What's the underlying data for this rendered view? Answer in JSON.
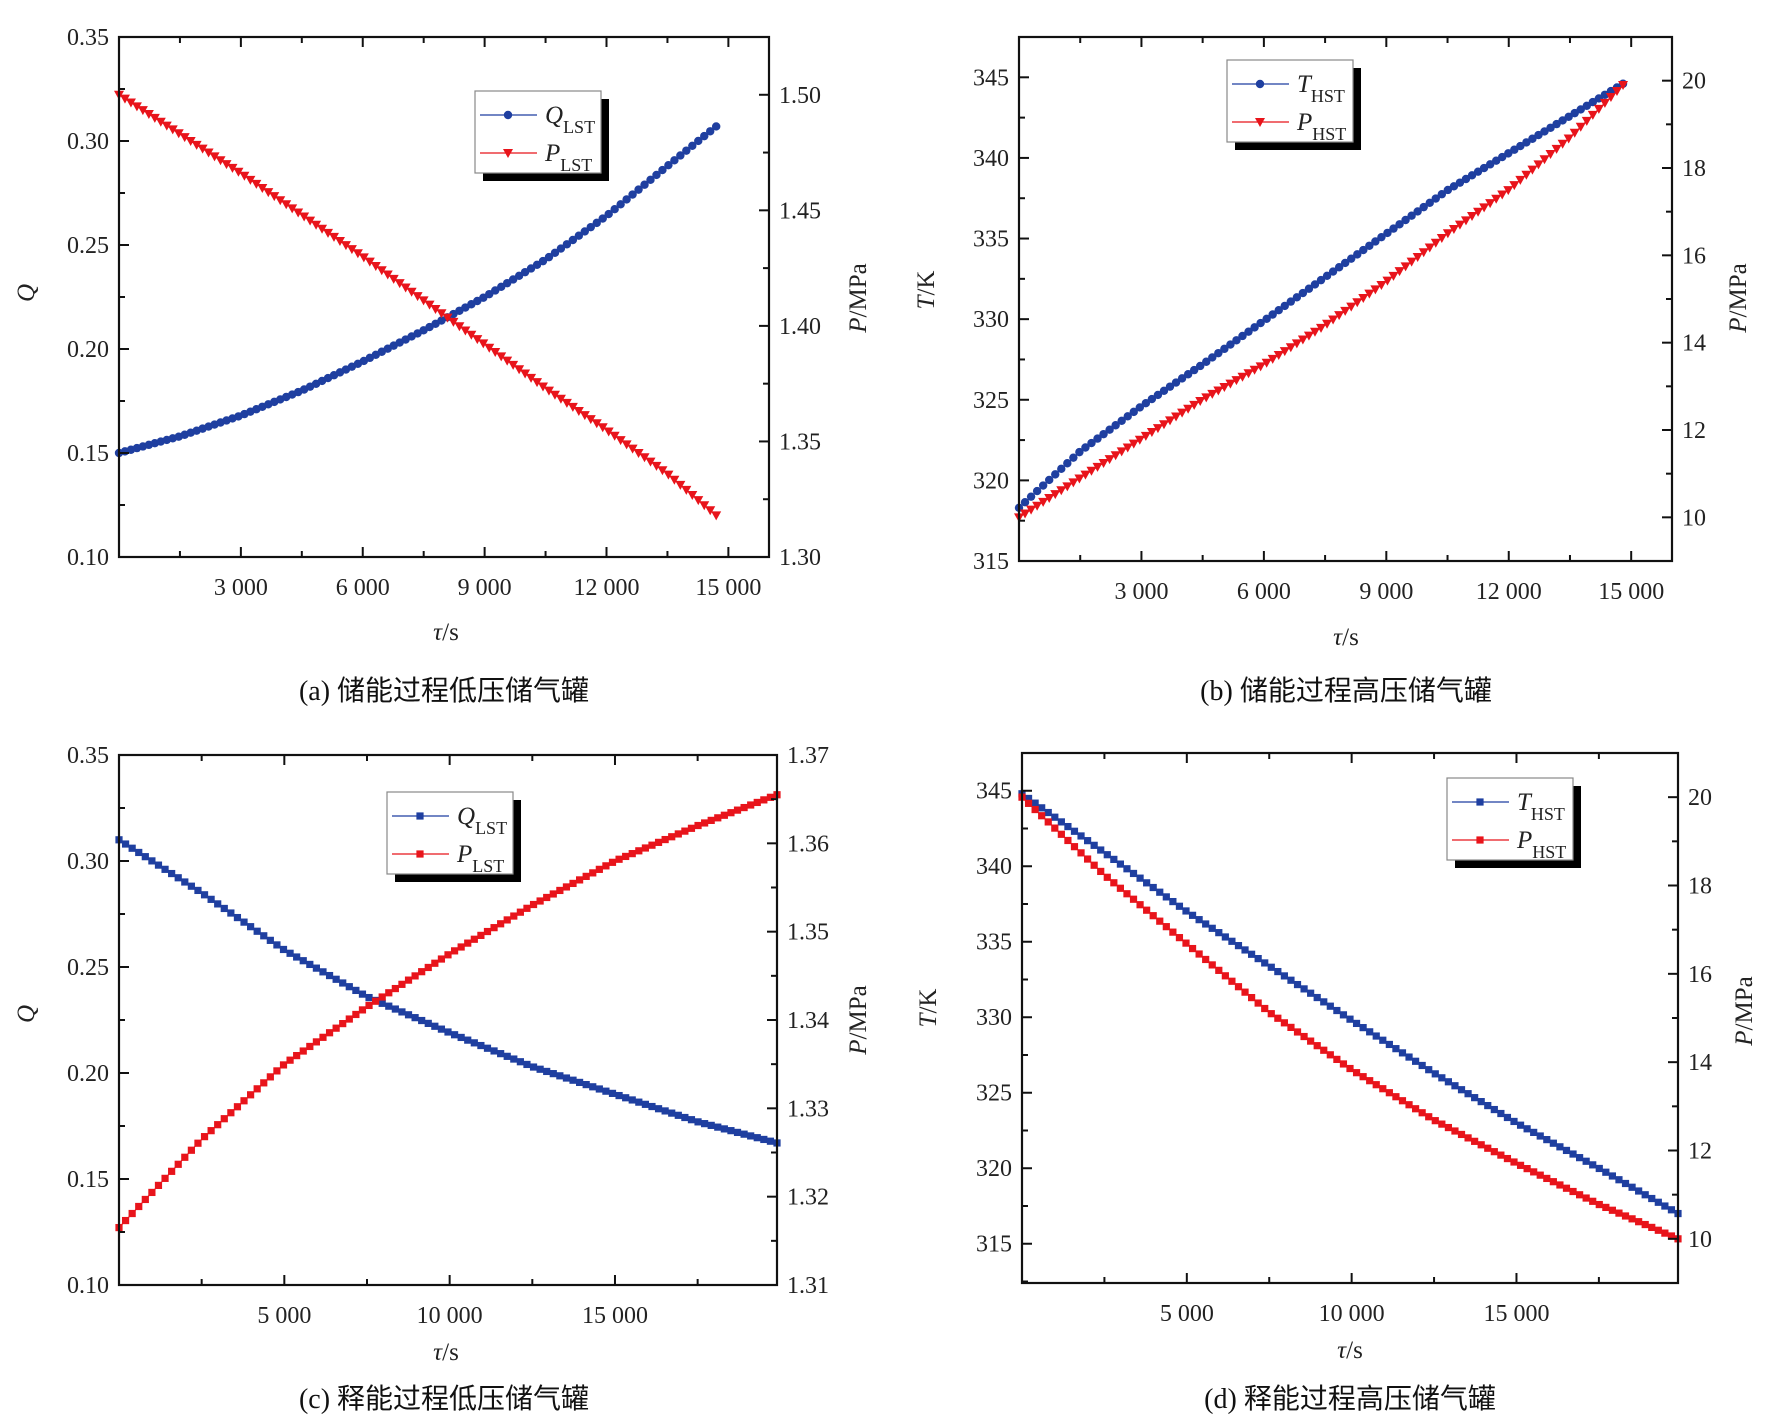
{
  "chart_data": [
    {
      "type": "line",
      "caption": "(a) 储能过程低压储气罐",
      "xlabel": {
        "sym": "τ",
        "unit": "/s"
      },
      "ylabel": {
        "sym": "Q",
        "unit": ""
      },
      "y2label": {
        "sym": "P",
        "unit": "/MPa"
      },
      "xlim": [
        0,
        16000
      ],
      "ylim": [
        0.1,
        0.35
      ],
      "y2lim": [
        1.3,
        1.525
      ],
      "xticks": [
        "3 000",
        "6 000",
        "9 000",
        "12 000",
        "15 000"
      ],
      "xminor": 1500,
      "yticks": [
        "0.10",
        "0.15",
        "0.20",
        "0.25",
        "0.30",
        "0.35"
      ],
      "yminor": 0.025,
      "y2ticks": [
        "1.30",
        "1.35",
        "1.40",
        "1.45",
        "1.50"
      ],
      "y2minor": 0.025,
      "legend_position": "top-right",
      "series": [
        {
          "name": {
            "sym": "Q",
            "sub": "LST"
          },
          "axis": "left",
          "marker": "circle",
          "color": "#1f3fa0",
          "x": [
            0,
            1500,
            3000,
            4500,
            6000,
            7500,
            9000,
            10500,
            12000,
            13500,
            14700
          ],
          "y": [
            0.15,
            0.158,
            0.168,
            0.18,
            0.194,
            0.209,
            0.225,
            0.243,
            0.264,
            0.288,
            0.307
          ]
        },
        {
          "name": {
            "sym": "P",
            "sub": "LST"
          },
          "axis": "right",
          "marker": "triangle-down",
          "color": "#e8141b",
          "x": [
            0,
            1500,
            3000,
            4500,
            6000,
            7500,
            9000,
            10500,
            12000,
            13500,
            14700
          ],
          "y": [
            1.5,
            1.483,
            1.466,
            1.448,
            1.43,
            1.411,
            1.392,
            1.373,
            1.355,
            1.336,
            1.318
          ]
        }
      ]
    },
    {
      "type": "line",
      "caption": "(b) 储能过程高压储气罐",
      "xlabel": {
        "sym": "τ",
        "unit": "/s"
      },
      "ylabel": {
        "sym": "T",
        "unit": "/K"
      },
      "y2label": {
        "sym": "P",
        "unit": "/MPa"
      },
      "xlim": [
        0,
        16000
      ],
      "ylim": [
        315,
        347.5
      ],
      "y2lim": [
        9,
        21
      ],
      "xticks": [
        "3 000",
        "6 000",
        "9 000",
        "12 000",
        "15 000"
      ],
      "xminor": 1500,
      "yticks": [
        "315",
        "320",
        "325",
        "330",
        "335",
        "340",
        "345"
      ],
      "yminor": 2.5,
      "y2ticks": [
        "10",
        "12",
        "14",
        "16",
        "18",
        "20"
      ],
      "y2minor": 1,
      "legend_position": "top-center",
      "series": [
        {
          "name": {
            "sym": "T",
            "sub": "HST"
          },
          "axis": "left",
          "marker": "circle",
          "color": "#1f3fa0",
          "x": [
            0,
            1500,
            3000,
            4500,
            6000,
            7500,
            9000,
            10500,
            12000,
            13500,
            14800
          ],
          "y": [
            318.3,
            321.8,
            324.6,
            327.2,
            329.9,
            332.6,
            335.3,
            338.0,
            340.3,
            342.6,
            344.6
          ]
        },
        {
          "name": {
            "sym": "P",
            "sub": "HST"
          },
          "axis": "right",
          "marker": "triangle-down",
          "color": "#e8141b",
          "x": [
            0,
            1500,
            3000,
            4500,
            6000,
            7500,
            9000,
            10500,
            12000,
            13500,
            14800
          ],
          "y": [
            10.0,
            10.9,
            11.8,
            12.7,
            13.5,
            14.4,
            15.4,
            16.5,
            17.5,
            18.7,
            19.9
          ]
        }
      ]
    },
    {
      "type": "line",
      "caption": "(c) 释能过程低压储气罐",
      "xlabel": {
        "sym": "τ",
        "unit": "/s"
      },
      "ylabel": {
        "sym": "Q",
        "unit": ""
      },
      "y2label": {
        "sym": "P",
        "unit": "/MPa"
      },
      "xlim": [
        0,
        19900
      ],
      "ylim": [
        0.1,
        0.35
      ],
      "y2lim": [
        1.31,
        1.37
      ],
      "xticks": [
        "5 000",
        "10 000",
        "15 000"
      ],
      "xminor": 2500,
      "yticks": [
        "0.10",
        "0.15",
        "0.20",
        "0.25",
        "0.30",
        "0.35"
      ],
      "yminor": 0.025,
      "y2ticks": [
        "1.31",
        "1.32",
        "1.33",
        "1.34",
        "1.35",
        "1.36",
        "1.37"
      ],
      "y2minor": 0.005,
      "legend_position": "top-center",
      "series": [
        {
          "name": {
            "sym": "Q",
            "sub": "LST"
          },
          "axis": "left",
          "marker": "square",
          "color": "#1f3fa0",
          "x": [
            0,
            2500,
            5000,
            7500,
            10000,
            12500,
            15000,
            17500,
            19900
          ],
          "y": [
            0.31,
            0.285,
            0.258,
            0.236,
            0.219,
            0.203,
            0.19,
            0.177,
            0.167
          ]
        },
        {
          "name": {
            "sym": "P",
            "sub": "LST"
          },
          "axis": "right",
          "marker": "square",
          "color": "#e8141b",
          "x": [
            0,
            2500,
            5000,
            7500,
            10000,
            12500,
            15000,
            17500,
            19900
          ],
          "y": [
            1.3165,
            1.3265,
            1.335,
            1.3415,
            1.3475,
            1.353,
            1.358,
            1.362,
            1.3655
          ]
        }
      ]
    },
    {
      "type": "line",
      "caption": "(d) 释能过程高压储气罐",
      "xlabel": {
        "sym": "τ",
        "unit": "/s"
      },
      "ylabel": {
        "sym": "T",
        "unit": "/K"
      },
      "y2label": {
        "sym": "P",
        "unit": "/MPa"
      },
      "xlim": [
        0,
        19900
      ],
      "ylim": [
        312.4,
        347.5
      ],
      "y2lim": [
        9,
        21
      ],
      "xticks": [
        "5 000",
        "10 000",
        "15 000"
      ],
      "xminor": 2500,
      "yticks": [
        "315",
        "320",
        "325",
        "330",
        "335",
        "340",
        "345"
      ],
      "yminor": 2.5,
      "y2ticks": [
        "10",
        "12",
        "14",
        "16",
        "18",
        "20"
      ],
      "y2minor": 1,
      "legend_position": "top-right",
      "series": [
        {
          "name": {
            "sym": "T",
            "sub": "HST"
          },
          "axis": "left",
          "marker": "square",
          "color": "#1f3fa0",
          "x": [
            0,
            2500,
            5000,
            7500,
            10000,
            12500,
            15000,
            17500,
            19900
          ],
          "y": [
            344.8,
            340.9,
            337.0,
            333.4,
            329.8,
            326.3,
            323.0,
            320.0,
            317.0
          ]
        },
        {
          "name": {
            "sym": "P",
            "sub": "HST"
          },
          "axis": "right",
          "marker": "square",
          "color": "#e8141b",
          "x": [
            0,
            2500,
            5000,
            7500,
            10000,
            12500,
            15000,
            17500,
            19900
          ],
          "y": [
            20.0,
            18.24,
            16.68,
            15.13,
            13.83,
            12.69,
            11.71,
            10.78,
            10.0
          ]
        }
      ]
    }
  ]
}
